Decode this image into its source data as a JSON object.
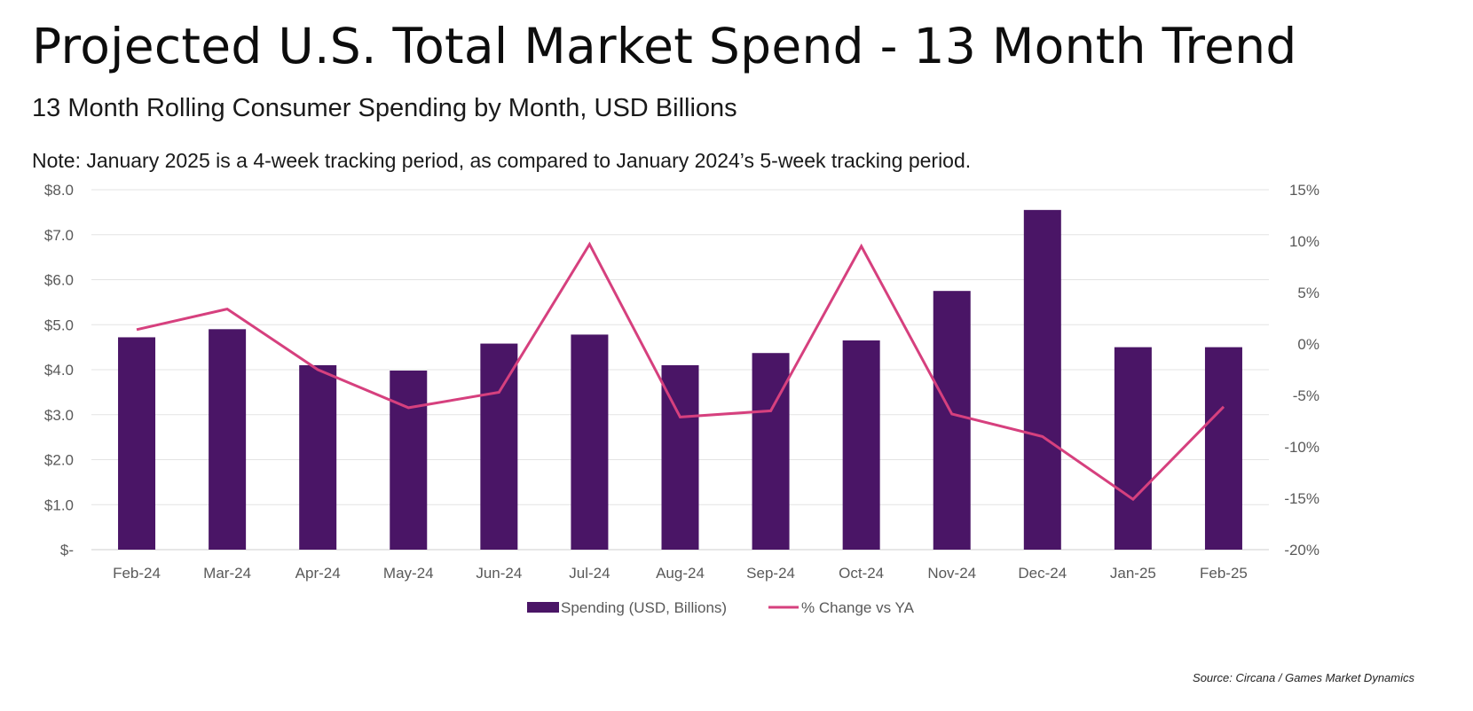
{
  "header": {
    "title": "Projected U.S. Total Market Spend - 13 Month Trend",
    "subtitle": "13 Month Rolling Consumer Spending by Month, USD Billions",
    "note": "Note: January 2025 is a 4-week tracking period, as compared to January 2024’s 5-week tracking period."
  },
  "chart_data": {
    "type": "bar",
    "categories": [
      "Feb-24",
      "Mar-24",
      "Apr-24",
      "May-24",
      "Jun-24",
      "Jul-24",
      "Aug-24",
      "Sep-24",
      "Oct-24",
      "Nov-24",
      "Dec-24",
      "Jan-25",
      "Feb-25"
    ],
    "series": [
      {
        "name": "Spending (USD, Billions)",
        "type": "bar",
        "axis": "left",
        "color": "#4a1566",
        "values": [
          4.72,
          4.9,
          4.1,
          3.98,
          4.58,
          4.78,
          4.1,
          4.37,
          4.65,
          5.75,
          7.55,
          4.5,
          4.5
        ]
      },
      {
        "name": "% Change vs YA",
        "type": "line",
        "axis": "right",
        "color": "#d6407e",
        "values": [
          1.4,
          3.4,
          -2.5,
          -6.2,
          -4.7,
          9.7,
          -7.1,
          -6.5,
          9.5,
          -6.8,
          -9.0,
          -15.1,
          -6.1
        ]
      }
    ],
    "y_left": {
      "ylim": [
        0,
        8
      ],
      "ticks": [
        0,
        1,
        2,
        3,
        4,
        5,
        6,
        7,
        8
      ],
      "tick_labels": [
        "$-",
        "$1.0",
        "$2.0",
        "$3.0",
        "$4.0",
        "$5.0",
        "$6.0",
        "$7.0",
        "$8.0"
      ]
    },
    "y_right": {
      "ylim": [
        -20,
        15
      ],
      "ticks": [
        -20,
        -15,
        -10,
        -5,
        0,
        5,
        10,
        15
      ],
      "tick_labels": [
        "-20%",
        "-15%",
        "-10%",
        "-5%",
        "0%",
        "5%",
        "10%",
        "15%"
      ]
    },
    "grid": true,
    "legend_position": "bottom-center"
  },
  "footer": {
    "source": "Source: Circana / Games Market Dynamics"
  }
}
